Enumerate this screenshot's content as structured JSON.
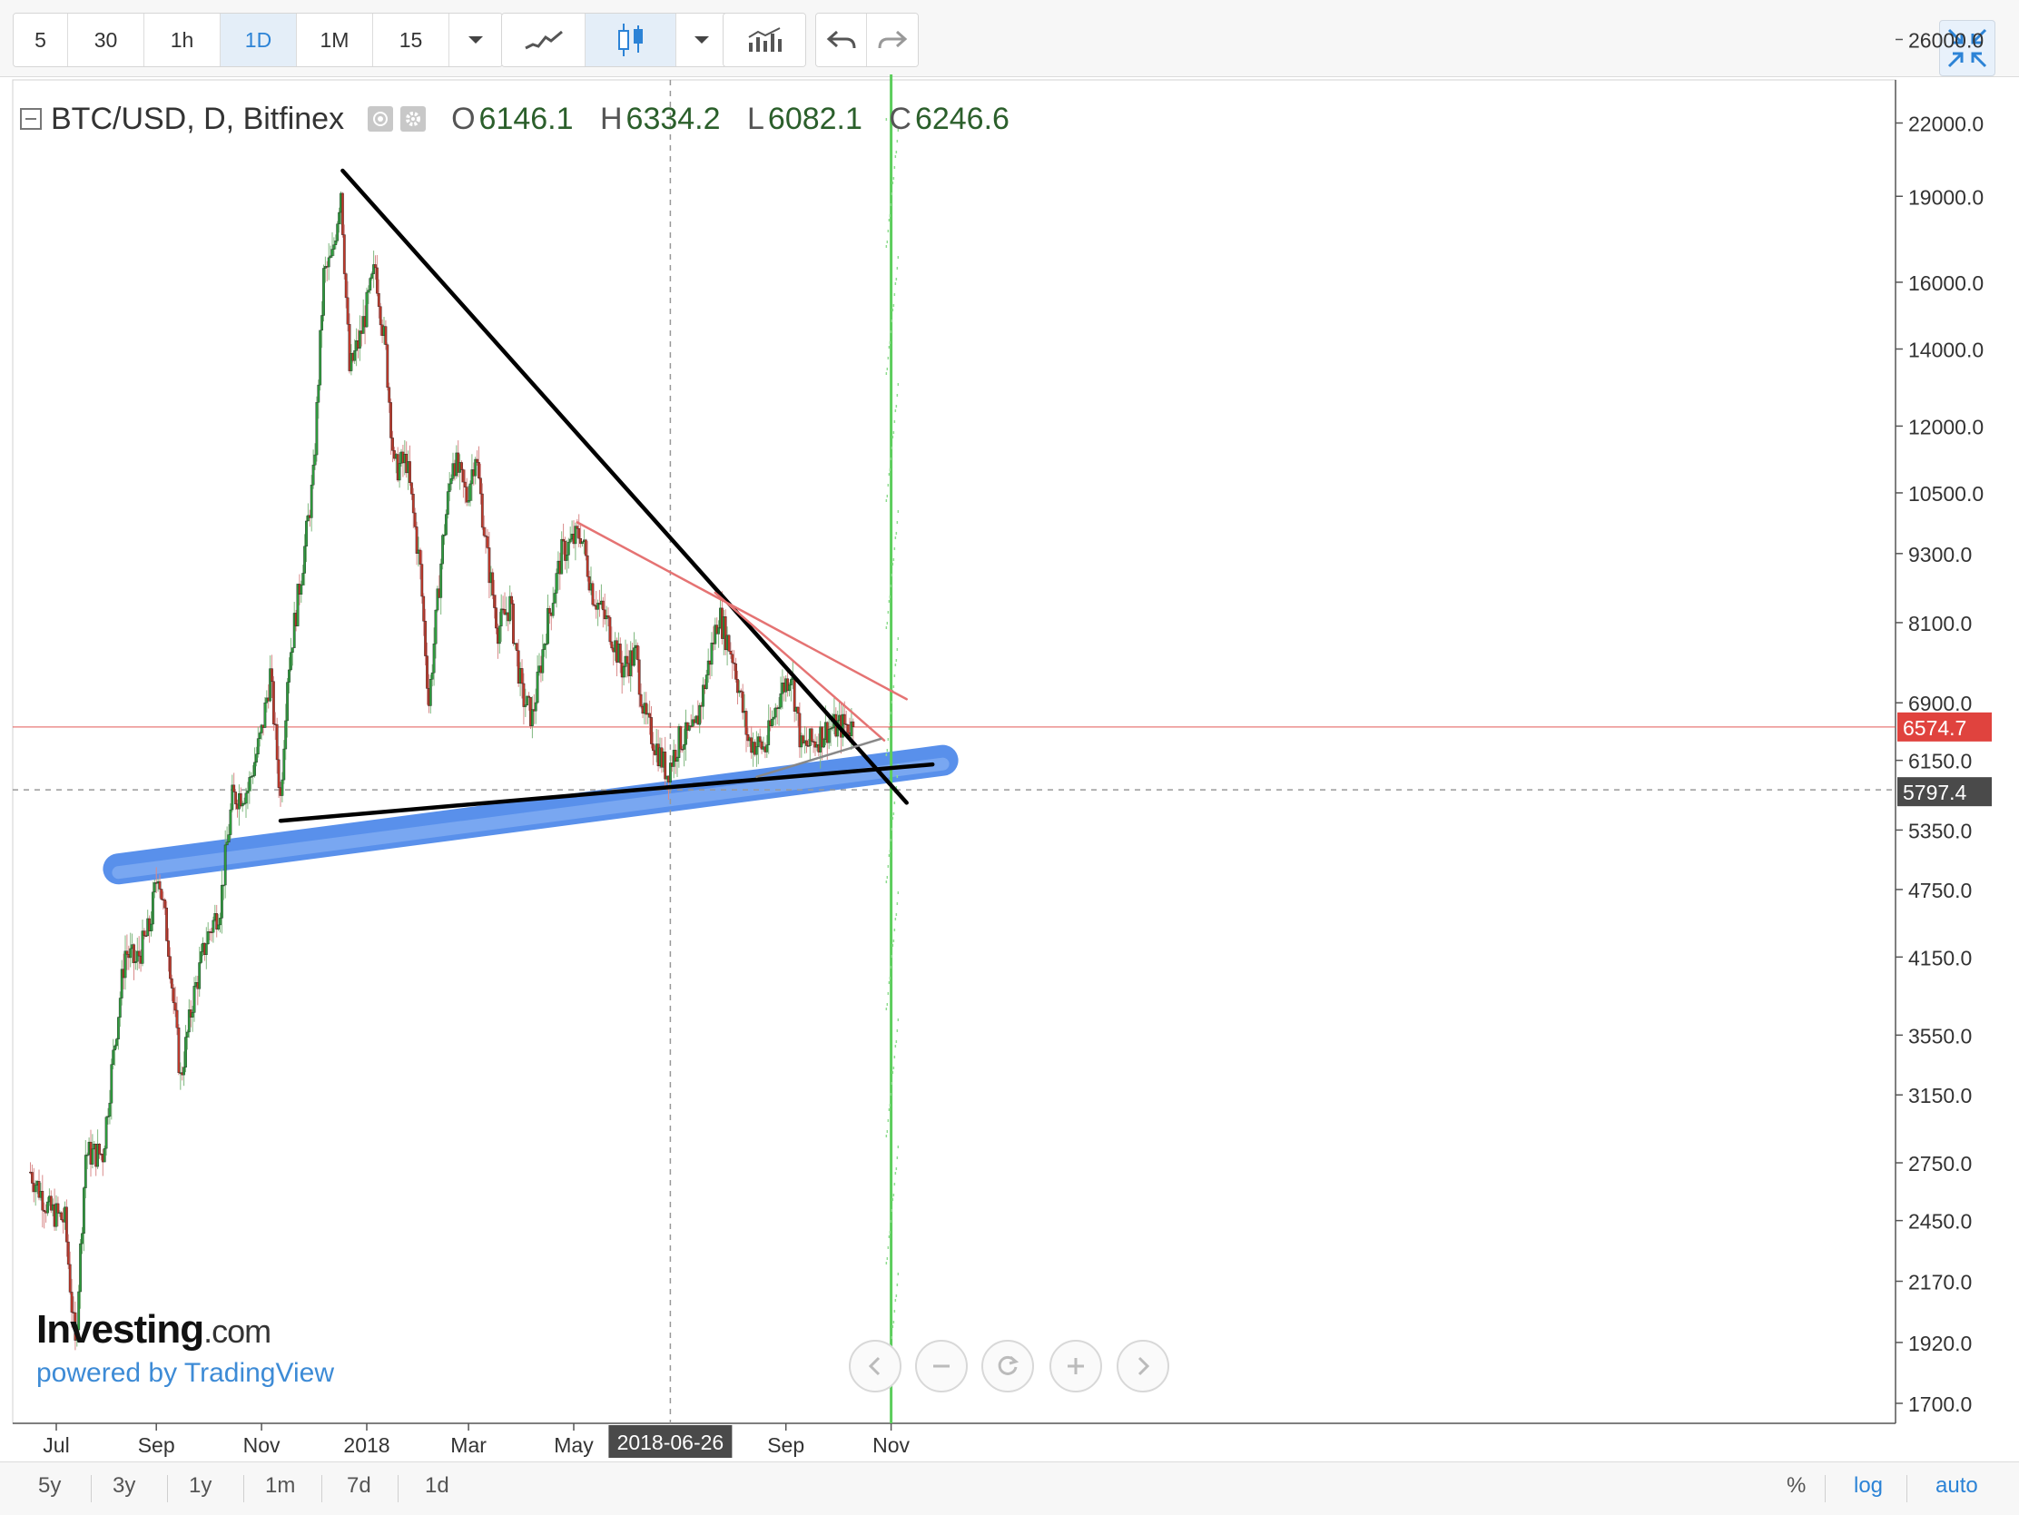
{
  "toolbar": {
    "intervals": [
      "5",
      "30",
      "1h",
      "1D",
      "1M",
      "15"
    ],
    "active_interval": "1D",
    "icons": [
      "dropdown-icon",
      "line-chart-icon",
      "candlestick-icon",
      "dropdown-icon",
      "indicators-icon",
      "undo-icon",
      "redo-icon",
      "fullscreen-icon"
    ]
  },
  "legend": {
    "symbol": "BTC/USD, D, Bitfinex",
    "open_label": "O",
    "open": "6146.1",
    "high_label": "H",
    "high": "6334.2",
    "low_label": "L",
    "low": "6082.1",
    "close_label": "C",
    "close": "6246.6"
  },
  "watermark": {
    "brand": "Investing",
    "brand_suffix": ".com",
    "powered": "powered by TradingView"
  },
  "bottombar": {
    "ranges": [
      "5y",
      "3y",
      "1y",
      "1m",
      "7d",
      "1d"
    ],
    "options": [
      "%",
      "log",
      "auto"
    ]
  },
  "colors": {
    "up": "#2e9e3e",
    "down": "#c0392b",
    "accent": "#2c83d6",
    "last_price": "#e0433e",
    "crosshair_label": "#4a4a4a",
    "highlight": "#3d7de8"
  },
  "chart_data": {
    "type": "candlestick",
    "scale": "log",
    "y_ticks": [
      26000,
      22000,
      19000,
      16000,
      14000,
      12000,
      10500,
      9300,
      8100,
      6900,
      6150,
      5350,
      4750,
      4150,
      3550,
      3150,
      2750,
      2450,
      2170,
      1920,
      1700
    ],
    "y_tick_labels": [
      "26000.0",
      "22000.0",
      "19000.0",
      "16000.0",
      "14000.0",
      "12000.0",
      "10500.0",
      "9300.0",
      "8100.0",
      "6900.0",
      "6150.0",
      "5350.0",
      "4750.0",
      "4150.0",
      "3550.0",
      "3150.0",
      "2750.0",
      "2450.0",
      "2170.0",
      "1920.0",
      "1700.0"
    ],
    "x_ticks": [
      {
        "date": "2017-07-05",
        "label": "Jul"
      },
      {
        "date": "2017-09-01",
        "label": "Sep"
      },
      {
        "date": "2017-11-01",
        "label": "Nov"
      },
      {
        "date": "2018-01-01",
        "label": "2018"
      },
      {
        "date": "2018-03-01",
        "label": "Mar"
      },
      {
        "date": "2018-05-01",
        "label": "May"
      },
      {
        "date": "2018-09-01",
        "label": "Sep"
      },
      {
        "date": "2018-11-01",
        "label": "Nov"
      }
    ],
    "crosshair": {
      "date": "2018-06-26",
      "label": "2018-06-26",
      "price": 5797.4,
      "price_label": "5797.4"
    },
    "last_price": {
      "value": 6574.7,
      "label": "6574.7"
    },
    "price_path": [
      [
        "2017-06-20",
        2700
      ],
      [
        "2017-07-01",
        2500
      ],
      [
        "2017-07-10",
        2450
      ],
      [
        "2017-07-16",
        1900
      ],
      [
        "2017-07-22",
        2800
      ],
      [
        "2017-08-01",
        2800
      ],
      [
        "2017-08-06",
        3300
      ],
      [
        "2017-08-14",
        4200
      ],
      [
        "2017-08-20",
        4100
      ],
      [
        "2017-08-28",
        4400
      ],
      [
        "2017-09-02",
        4950
      ],
      [
        "2017-09-08",
        4250
      ],
      [
        "2017-09-15",
        3250
      ],
      [
        "2017-09-22",
        3800
      ],
      [
        "2017-09-30",
        4300
      ],
      [
        "2017-10-08",
        4600
      ],
      [
        "2017-10-15",
        5700
      ],
      [
        "2017-10-24",
        5800
      ],
      [
        "2017-11-01",
        6500
      ],
      [
        "2017-11-06",
        7300
      ],
      [
        "2017-11-12",
        5700
      ],
      [
        "2017-11-16",
        7300
      ],
      [
        "2017-11-26",
        9400
      ],
      [
        "2017-12-01",
        10800
      ],
      [
        "2017-12-07",
        16200
      ],
      [
        "2017-12-12",
        16800
      ],
      [
        "2017-12-17",
        19300
      ],
      [
        "2017-12-22",
        13400
      ],
      [
        "2017-12-28",
        14300
      ],
      [
        "2018-01-06",
        16500
      ],
      [
        "2018-01-12",
        13900
      ],
      [
        "2018-01-17",
        11000
      ],
      [
        "2018-01-24",
        11200
      ],
      [
        "2018-02-01",
        9000
      ],
      [
        "2018-02-06",
        6900
      ],
      [
        "2018-02-14",
        9500
      ],
      [
        "2018-02-20",
        11300
      ],
      [
        "2018-02-28",
        10400
      ],
      [
        "2018-03-05",
        11400
      ],
      [
        "2018-03-12",
        9200
      ],
      [
        "2018-03-18",
        8000
      ],
      [
        "2018-03-25",
        8400
      ],
      [
        "2018-04-01",
        7000
      ],
      [
        "2018-04-07",
        6700
      ],
      [
        "2018-04-15",
        8000
      ],
      [
        "2018-04-24",
        9300
      ],
      [
        "2018-05-05",
        9700
      ],
      [
        "2018-05-12",
        8600
      ],
      [
        "2018-05-22",
        8000
      ],
      [
        "2018-05-29",
        7400
      ],
      [
        "2018-06-06",
        7600
      ],
      [
        "2018-06-11",
        6700
      ],
      [
        "2018-06-24",
        6000
      ],
      [
        "2018-07-01",
        6400
      ],
      [
        "2018-07-10",
        6500
      ],
      [
        "2018-07-17",
        7300
      ],
      [
        "2018-07-24",
        8250
      ],
      [
        "2018-08-02",
        7500
      ],
      [
        "2018-08-10",
        6400
      ],
      [
        "2018-08-20",
        6300
      ],
      [
        "2018-08-28",
        7000
      ],
      [
        "2018-09-04",
        7350
      ],
      [
        "2018-09-10",
        6300
      ],
      [
        "2018-09-18",
        6400
      ],
      [
        "2018-09-25",
        6550
      ],
      [
        "2018-10-05",
        6600
      ],
      [
        "2018-10-10",
        6574.7
      ]
    ],
    "trendlines": [
      {
        "name": "upper-resistance",
        "color": "#000000",
        "from": [
          "2017-12-18",
          20000
        ],
        "to": [
          "2018-11-10",
          5650
        ]
      },
      {
        "name": "lower-support",
        "color": "#000000",
        "from": [
          "2017-11-12",
          5450
        ],
        "to": [
          "2018-11-25",
          6100
        ]
      },
      {
        "name": "red-resistance-1",
        "color": "#e57373",
        "from": [
          "2018-05-03",
          9900
        ],
        "to": [
          "2018-11-10",
          6950
        ]
      },
      {
        "name": "red-resistance-2",
        "color": "#e57373",
        "from": [
          "2018-07-22",
          8600
        ],
        "to": [
          "2018-10-28",
          6400
        ]
      },
      {
        "name": "grey-support",
        "color": "#888888",
        "from": [
          "2018-08-15",
          5950
        ],
        "to": [
          "2018-10-26",
          6420
        ]
      }
    ],
    "highlight_band": {
      "from": [
        "2017-08-10",
        4950
      ],
      "to": [
        "2018-12-01",
        6150
      ]
    },
    "vertical_marker": {
      "date": "2018-11-01",
      "color": "#5ccd5c"
    }
  }
}
